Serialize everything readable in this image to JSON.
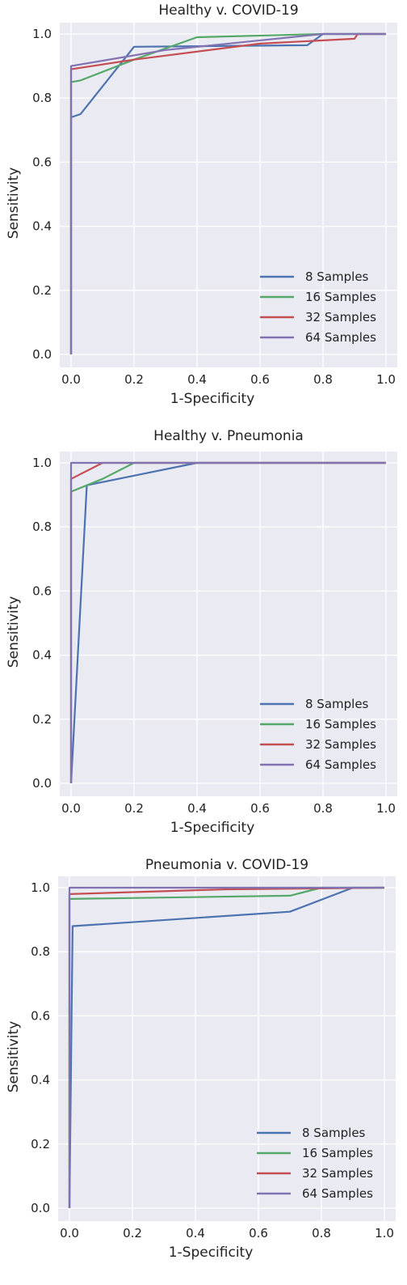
{
  "colors": {
    "panel_bg": "#eaeaf2",
    "grid": "#ffffff",
    "series": [
      "#4c72b0",
      "#55a868",
      "#c44e52",
      "#8172b2"
    ]
  },
  "chart_data": [
    {
      "type": "line",
      "title": "Healthy v. COVID-19",
      "xlabel": "1-Specificity",
      "ylabel": "Sensitivity",
      "xlim": [
        0,
        1
      ],
      "ylim": [
        0,
        1
      ],
      "xticks": [
        "0.0",
        "0.2",
        "0.4",
        "0.6",
        "0.8",
        "1.0"
      ],
      "yticks": [
        "0.0",
        "0.2",
        "0.4",
        "0.6",
        "0.8",
        "1.0"
      ],
      "grid": true,
      "legend": "lower-right",
      "series": [
        {
          "name": "8 Samples",
          "x": [
            0,
            0,
            0.03,
            0.2,
            0.75,
            0.8,
            1.0
          ],
          "y": [
            0,
            0.74,
            0.75,
            0.96,
            0.965,
            1.0,
            1.0
          ]
        },
        {
          "name": "16 Samples",
          "x": [
            0,
            0,
            0.03,
            0.2,
            0.4,
            0.8,
            1.0
          ],
          "y": [
            0,
            0.85,
            0.855,
            0.92,
            0.99,
            1.0,
            1.0
          ]
        },
        {
          "name": "32 Samples",
          "x": [
            0,
            0,
            0.2,
            0.6,
            0.9,
            0.91,
            1.0
          ],
          "y": [
            0,
            0.89,
            0.92,
            0.97,
            0.985,
            1.0,
            1.0
          ]
        },
        {
          "name": "64 Samples",
          "x": [
            0,
            0,
            0.3,
            0.8,
            1.0
          ],
          "y": [
            0,
            0.9,
            0.95,
            1.0,
            1.0
          ]
        }
      ]
    },
    {
      "type": "line",
      "title": "Healthy v. Pneumonia",
      "xlabel": "1-Specificity",
      "ylabel": "Sensitivity",
      "xlim": [
        0,
        1
      ],
      "ylim": [
        0,
        1
      ],
      "xticks": [
        "0.0",
        "0.2",
        "0.4",
        "0.6",
        "0.8",
        "1.0"
      ],
      "yticks": [
        "0.0",
        "0.2",
        "0.4",
        "0.6",
        "0.8",
        "1.0"
      ],
      "grid": true,
      "legend": "lower-right",
      "series": [
        {
          "name": "8 Samples",
          "x": [
            0,
            0.05,
            0.2,
            0.4,
            1.0
          ],
          "y": [
            0,
            0.93,
            0.96,
            1.0,
            1.0
          ]
        },
        {
          "name": "16 Samples",
          "x": [
            0,
            0,
            0.1,
            0.2,
            1.0
          ],
          "y": [
            0,
            0.91,
            0.95,
            1.0,
            1.0
          ]
        },
        {
          "name": "32 Samples",
          "x": [
            0,
            0,
            0.1,
            1.0
          ],
          "y": [
            0,
            0.95,
            1.0,
            1.0
          ]
        },
        {
          "name": "64 Samples",
          "x": [
            0,
            0,
            1.0
          ],
          "y": [
            0,
            1.0,
            1.0
          ]
        }
      ]
    },
    {
      "type": "line",
      "title": "Pneumonia v. COVID-19",
      "xlabel": "1-Specificity",
      "ylabel": "Sensitivity",
      "xlim": [
        0,
        1
      ],
      "ylim": [
        0,
        1
      ],
      "xticks": [
        "0.0",
        "0.2",
        "0.4",
        "0.6",
        "0.8",
        "1.0"
      ],
      "yticks": [
        "0.0",
        "0.2",
        "0.4",
        "0.6",
        "0.8",
        "1.0"
      ],
      "grid": true,
      "legend": "lower-right",
      "series": [
        {
          "name": "8 Samples",
          "x": [
            0,
            0.01,
            0.7,
            0.9,
            1.0
          ],
          "y": [
            0,
            0.88,
            0.925,
            1.0,
            1.0
          ]
        },
        {
          "name": "16 Samples",
          "x": [
            0,
            0,
            0.7,
            0.8,
            1.0
          ],
          "y": [
            0,
            0.965,
            0.975,
            1.0,
            1.0
          ]
        },
        {
          "name": "32 Samples",
          "x": [
            0,
            0,
            0.5,
            1.0
          ],
          "y": [
            0,
            0.98,
            0.995,
            1.0
          ]
        },
        {
          "name": "64 Samples",
          "x": [
            0,
            0,
            1.0
          ],
          "y": [
            0,
            1.0,
            1.0
          ]
        }
      ]
    }
  ]
}
